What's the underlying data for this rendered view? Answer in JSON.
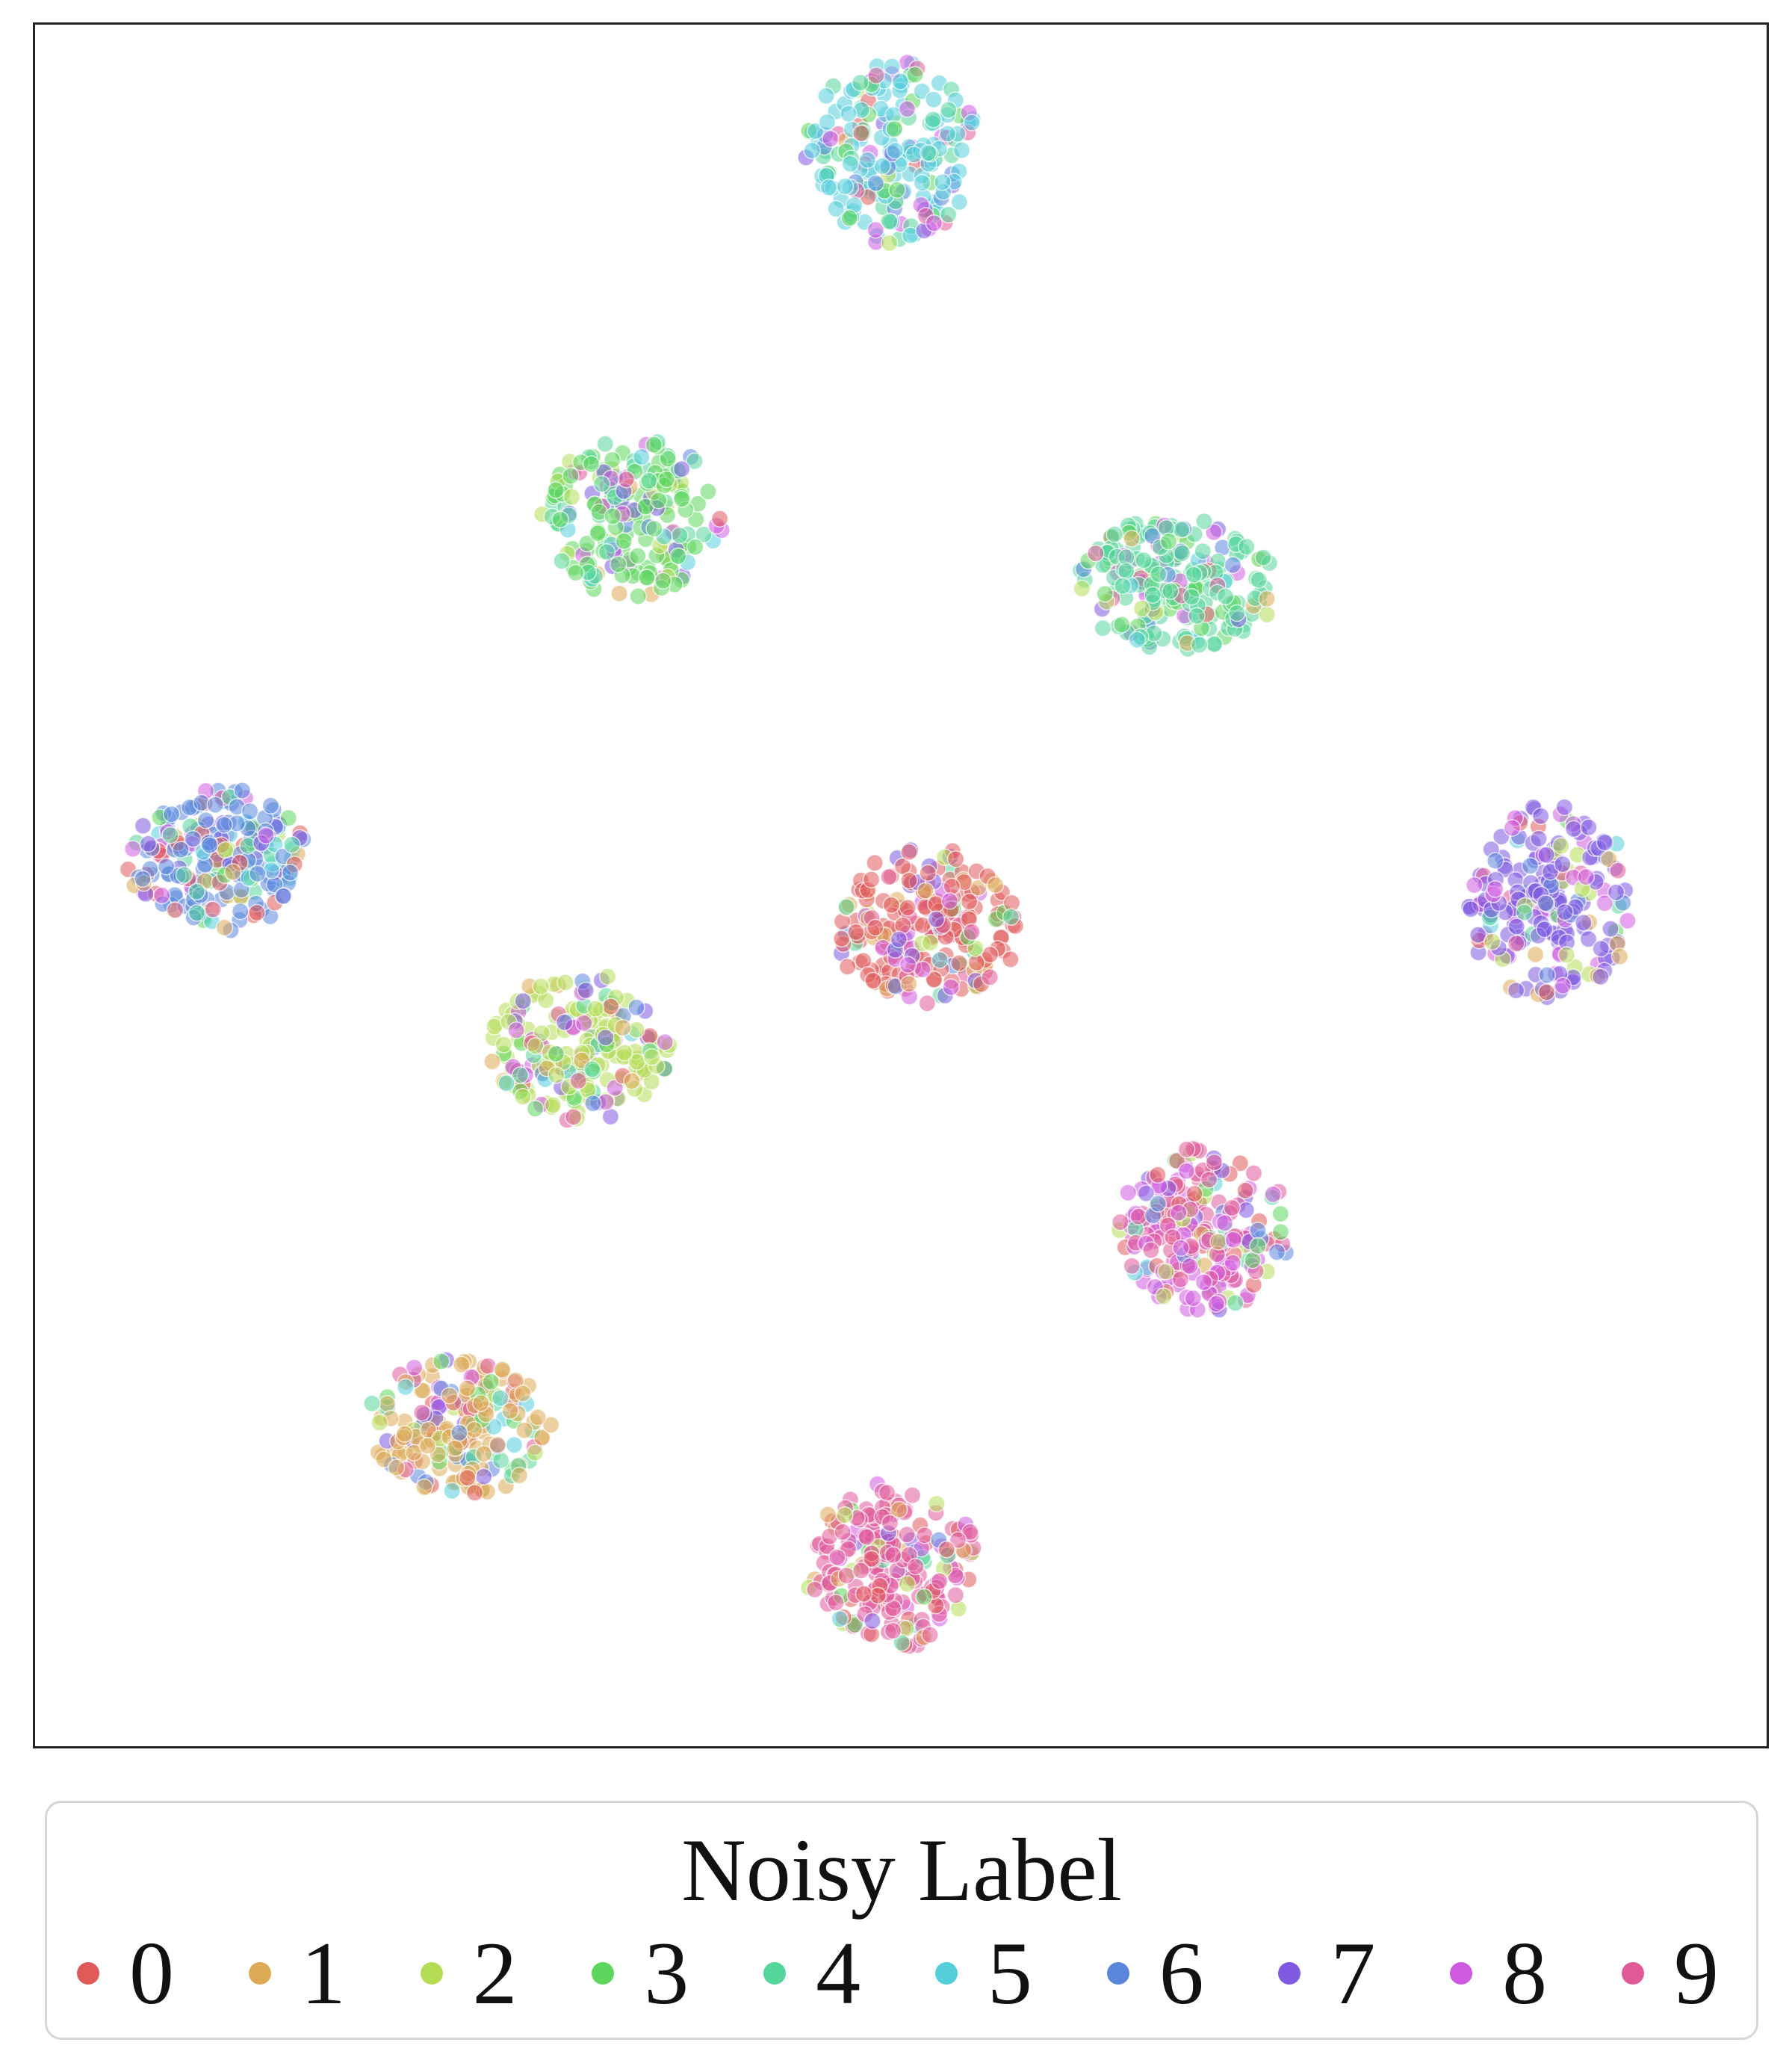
{
  "chart_data": {
    "type": "scatter",
    "title": "",
    "xlabel": "",
    "ylabel": "",
    "xlim": [
      0,
      100
    ],
    "ylim": [
      0,
      100
    ],
    "grid": false,
    "ticks_visible": false,
    "legend": {
      "title": "Noisy Label",
      "placement": "bottom",
      "entries": [
        "0",
        "1",
        "2",
        "3",
        "4",
        "5",
        "6",
        "7",
        "8",
        "9"
      ]
    },
    "palette": [
      "#e05a5a",
      "#dcaa55",
      "#b5dc55",
      "#5cd65c",
      "#55d69a",
      "#55cedc",
      "#5a86dc",
      "#7d5ae0",
      "#cf5ae0",
      "#e05a9a"
    ],
    "point_alpha": 0.55,
    "clusters": [
      {
        "center": [
          49.5,
          92.5
        ],
        "spread": [
          4.8,
          5.2
        ],
        "count": 210,
        "dominant_label": "5",
        "mix": [
          1,
          1,
          1,
          6,
          6,
          28,
          3,
          3,
          5,
          2
        ]
      },
      {
        "center": [
          34.5,
          71.5
        ],
        "spread": [
          5.0,
          4.6
        ],
        "count": 200,
        "dominant_label": "3",
        "mix": [
          1,
          1,
          5,
          30,
          8,
          3,
          2,
          3,
          4,
          1
        ]
      },
      {
        "center": [
          66.0,
          67.5
        ],
        "spread": [
          5.5,
          3.8
        ],
        "count": 220,
        "dominant_label": "4",
        "mix": [
          1,
          1,
          2,
          6,
          32,
          2,
          1,
          3,
          3,
          1
        ]
      },
      {
        "center": [
          10.5,
          51.5
        ],
        "spread": [
          5.0,
          4.0
        ],
        "count": 220,
        "dominant_label": "6",
        "mix": [
          3,
          3,
          2,
          3,
          3,
          5,
          28,
          4,
          5,
          2
        ]
      },
      {
        "center": [
          51.5,
          47.5
        ],
        "spread": [
          5.0,
          4.6
        ],
        "count": 220,
        "dominant_label": "0",
        "mix": [
          30,
          3,
          2,
          2,
          2,
          1,
          2,
          3,
          4,
          3
        ]
      },
      {
        "center": [
          87.5,
          49.0
        ],
        "spread": [
          4.6,
          5.4
        ],
        "count": 210,
        "dominant_label": "7",
        "mix": [
          2,
          2,
          3,
          2,
          2,
          1,
          4,
          30,
          5,
          2
        ]
      },
      {
        "center": [
          31.5,
          40.5
        ],
        "spread": [
          5.0,
          4.2
        ],
        "count": 210,
        "dominant_label": "2",
        "mix": [
          2,
          2,
          30,
          4,
          2,
          3,
          2,
          3,
          5,
          2
        ]
      },
      {
        "center": [
          67.5,
          30.0
        ],
        "spread": [
          4.8,
          4.6
        ],
        "count": 220,
        "dominant_label": "8",
        "mix": [
          4,
          1,
          2,
          2,
          2,
          2,
          2,
          3,
          22,
          14
        ]
      },
      {
        "center": [
          24.5,
          18.5
        ],
        "spread": [
          5.2,
          3.8
        ],
        "count": 200,
        "dominant_label": "1",
        "mix": [
          3,
          30,
          2,
          3,
          3,
          2,
          3,
          2,
          3,
          2
        ]
      },
      {
        "center": [
          49.5,
          10.5
        ],
        "spread": [
          4.8,
          4.6
        ],
        "count": 220,
        "dominant_label": "9",
        "mix": [
          6,
          2,
          2,
          2,
          1,
          1,
          1,
          1,
          3,
          32
        ]
      }
    ]
  }
}
